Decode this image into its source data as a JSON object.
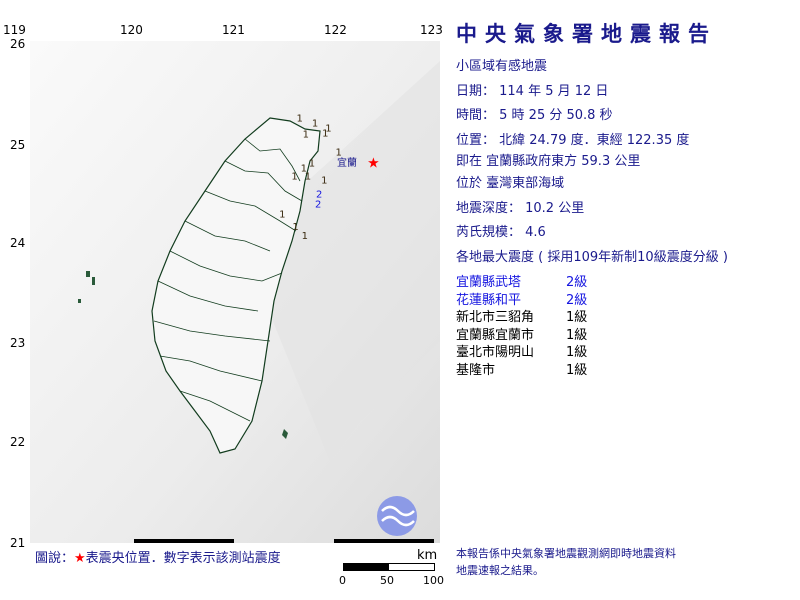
{
  "map": {
    "lon_ticks": [
      "119",
      "120",
      "121",
      "122",
      "123"
    ],
    "lat_ticks": [
      "26",
      "25",
      "24",
      "23",
      "22",
      "21"
    ],
    "epicenter_icon": "red-star",
    "epicenter": {
      "lat": 24.79,
      "lon": 122.35
    },
    "city_label": "宜蘭",
    "stations": [
      {
        "value": "1",
        "lat": 25.2,
        "lon": 121.6
      },
      {
        "value": "1",
        "lat": 25.15,
        "lon": 121.75
      },
      {
        "value": "1",
        "lat": 25.1,
        "lon": 121.88
      },
      {
        "value": "1",
        "lat": 25.04,
        "lon": 121.66
      },
      {
        "value": "1",
        "lat": 25.05,
        "lon": 121.85
      },
      {
        "value": "1",
        "lat": 24.86,
        "lon": 121.98
      },
      {
        "value": "1",
        "lat": 24.75,
        "lon": 121.72
      },
      {
        "value": "1",
        "lat": 24.7,
        "lon": 121.64
      },
      {
        "value": "1",
        "lat": 24.62,
        "lon": 121.55
      },
      {
        "value": "1",
        "lat": 24.62,
        "lon": 121.68
      },
      {
        "value": "1",
        "lat": 24.58,
        "lon": 121.84
      },
      {
        "value": "2",
        "lat": 24.44,
        "lon": 121.79
      },
      {
        "value": "2",
        "lat": 24.34,
        "lon": 121.78
      },
      {
        "value": "1",
        "lat": 24.24,
        "lon": 121.43
      },
      {
        "value": "1",
        "lat": 24.12,
        "lon": 121.56
      },
      {
        "value": "1",
        "lat": 24.03,
        "lon": 121.65
      }
    ],
    "scale": {
      "unit": "km",
      "labels": [
        "0",
        "50",
        "100"
      ]
    },
    "logo_icon": "cwa-logo"
  },
  "report": {
    "title": "中央氣象署地震報告",
    "type": "小區域有感地震",
    "date": "日期： 114 年 5 月 12 日",
    "time": "時間： 5 時 25 分 50.8 秒",
    "location": "位置： 北緯 24.79 度．東經 122.35 度",
    "relative": "即在 宜蘭縣政府東方 59.3 公里",
    "region": "位於 臺灣東部海域",
    "depth": "地震深度： 10.2 公里",
    "magnitude": "芮氏規模： 4.6",
    "intensity_header": "各地最大震度 ( 採用109年新制10級震度分級 )",
    "intensities": [
      {
        "place": "宜蘭縣武塔",
        "level": "2級",
        "color": "#1515e0"
      },
      {
        "place": "花蓮縣和平",
        "level": "2級",
        "color": "#1515e0"
      },
      {
        "place": "新北市三貂角",
        "level": "1級",
        "color": "#000000"
      },
      {
        "place": "宜蘭縣宜蘭市",
        "level": "1級",
        "color": "#000000"
      },
      {
        "place": "臺北市陽明山",
        "level": "1級",
        "color": "#000000"
      },
      {
        "place": "基隆市",
        "level": "1級",
        "color": "#000000"
      }
    ],
    "footer_1": "本報告係中央氣象署地震觀測網即時地震資料",
    "footer_2": "地震速報之結果。"
  },
  "legend": {
    "prefix": "圖說：",
    "star": "★",
    "text": "表震央位置．數字表示該測站震度"
  },
  "colors": {
    "title": "#1a1a8c",
    "epicenter": "#ff0000",
    "level2": "#1515e0"
  }
}
